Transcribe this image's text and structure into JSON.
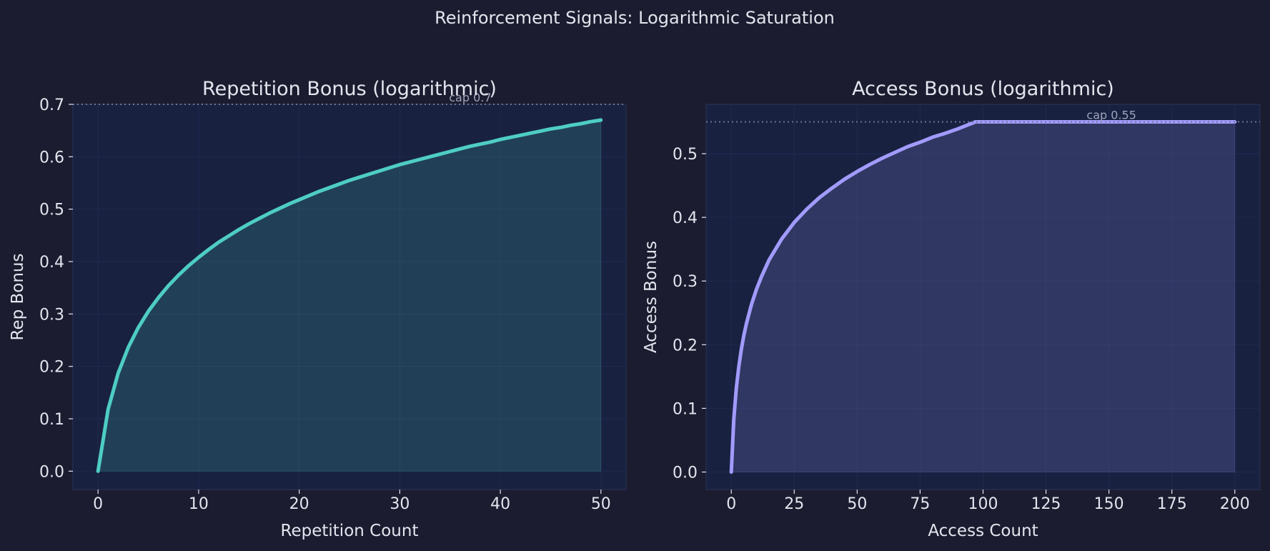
{
  "suptitle": "Reinforcement Signals: Logarithmic Saturation",
  "colors": {
    "background": "#1b1c2f",
    "plot_bg": "#182140",
    "text": "#e3e5ee",
    "cap_line": "#6c7494",
    "grid": "#27305a",
    "series_left": "#4ecdc4",
    "series_right": "#a29bfe"
  },
  "chart_data": [
    {
      "type": "area",
      "title": "Repetition Bonus (logarithmic)",
      "xlabel": "Repetition Count",
      "ylabel": "Rep Bonus",
      "xlim": [
        -2.5,
        52.5
      ],
      "ylim": [
        -0.035,
        0.7
      ],
      "xticks": [
        0,
        10,
        20,
        30,
        40,
        50
      ],
      "yticks": [
        0.0,
        0.1,
        0.2,
        0.3,
        0.4,
        0.5,
        0.6,
        0.7
      ],
      "tick_format": "fixed1",
      "grid": true,
      "cap": {
        "value": 0.7,
        "label": "cap 0.7",
        "label_x": 37
      },
      "series": [
        {
          "x": [
            0,
            1,
            2,
            3,
            4,
            5,
            6,
            7,
            8,
            9,
            10,
            11,
            12,
            13,
            14,
            15,
            16,
            17,
            18,
            19,
            20,
            21,
            22,
            23,
            24,
            25,
            26,
            27,
            28,
            29,
            30,
            31,
            32,
            33,
            34,
            35,
            36,
            37,
            38,
            39,
            40,
            41,
            42,
            43,
            44,
            45,
            46,
            47,
            48,
            49,
            50
          ],
          "values": [
            0.0,
            0.118,
            0.187,
            0.236,
            0.274,
            0.305,
            0.331,
            0.354,
            0.374,
            0.392,
            0.408,
            0.423,
            0.437,
            0.449,
            0.461,
            0.472,
            0.482,
            0.492,
            0.501,
            0.51,
            0.518,
            0.526,
            0.534,
            0.541,
            0.548,
            0.555,
            0.561,
            0.567,
            0.573,
            0.579,
            0.585,
            0.59,
            0.595,
            0.6,
            0.605,
            0.61,
            0.615,
            0.62,
            0.624,
            0.628,
            0.633,
            0.637,
            0.641,
            0.645,
            0.649,
            0.653,
            0.656,
            0.66,
            0.663,
            0.667,
            0.67
          ]
        }
      ]
    },
    {
      "type": "area",
      "title": "Access Bonus (logarithmic)",
      "xlabel": "Access Count",
      "ylabel": "Access Bonus",
      "xlim": [
        -10,
        210
      ],
      "ylim": [
        -0.0275,
        0.5775
      ],
      "xticks": [
        0,
        25,
        50,
        75,
        100,
        125,
        150,
        175,
        200
      ],
      "yticks": [
        0.0,
        0.1,
        0.2,
        0.3,
        0.4,
        0.5
      ],
      "tick_format": "fixed1",
      "grid": true,
      "cap": {
        "value": 0.55,
        "label": "cap 0.55",
        "label_x": 151
      },
      "series": [
        {
          "x": [
            0,
            1,
            2,
            3,
            4,
            5,
            6,
            8,
            10,
            12,
            15,
            20,
            25,
            30,
            35,
            40,
            45,
            50,
            55,
            60,
            65,
            70,
            75,
            80,
            85,
            90,
            97,
            100,
            110,
            120,
            130,
            140,
            150,
            160,
            170,
            180,
            190,
            200
          ],
          "values": [
            0.0,
            0.083,
            0.132,
            0.166,
            0.193,
            0.215,
            0.233,
            0.263,
            0.287,
            0.307,
            0.333,
            0.366,
            0.392,
            0.413,
            0.431,
            0.446,
            0.46,
            0.472,
            0.483,
            0.493,
            0.502,
            0.511,
            0.518,
            0.526,
            0.532,
            0.539,
            0.55,
            0.55,
            0.55,
            0.55,
            0.55,
            0.55,
            0.55,
            0.55,
            0.55,
            0.55,
            0.55,
            0.55
          ]
        }
      ]
    }
  ]
}
